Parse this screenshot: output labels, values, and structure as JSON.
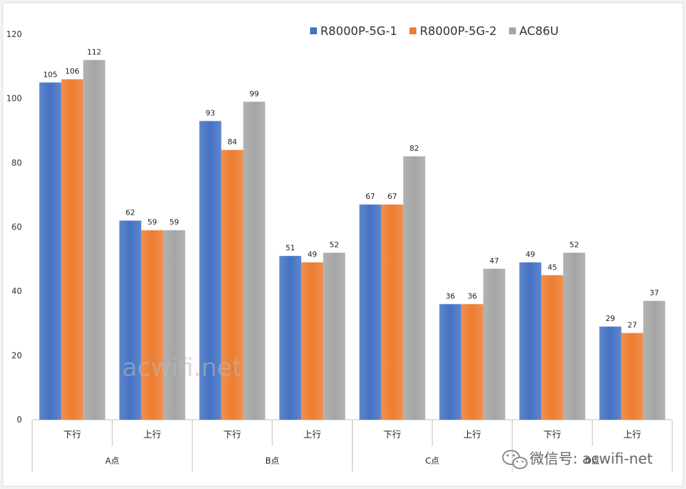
{
  "chart_data": {
    "type": "bar",
    "title": "",
    "xlabel": "",
    "ylabel": "",
    "ylim": [
      0,
      120
    ],
    "yticks": [
      0,
      20,
      40,
      60,
      80,
      100,
      120
    ],
    "groups": [
      {
        "label": "A点",
        "categories": [
          "下行",
          "上行"
        ]
      },
      {
        "label": "B点",
        "categories": [
          "下行",
          "上行"
        ]
      },
      {
        "label": "C点",
        "categories": [
          "下行",
          "上行"
        ]
      },
      {
        "label": "D点",
        "categories": [
          "下行",
          "上行"
        ]
      }
    ],
    "categories": [
      "下行",
      "上行",
      "下行",
      "上行",
      "下行",
      "上行",
      "下行",
      "上行"
    ],
    "series": [
      {
        "name": "R8000P-5G-1",
        "color": "#4472C4",
        "values": [
          105,
          62,
          93,
          51,
          67,
          36,
          49,
          29
        ]
      },
      {
        "name": "R8000P-5G-2",
        "color": "#ED7D31",
        "values": [
          106,
          59,
          84,
          49,
          67,
          36,
          45,
          27
        ]
      },
      {
        "name": "AC86U",
        "color": "#A5A5A5",
        "values": [
          112,
          59,
          99,
          52,
          82,
          47,
          52,
          37
        ]
      }
    ],
    "legend": "top-right",
    "grid": false
  },
  "watermark": "acwifi.net",
  "wechat_label": "微信号: acwifi-net"
}
